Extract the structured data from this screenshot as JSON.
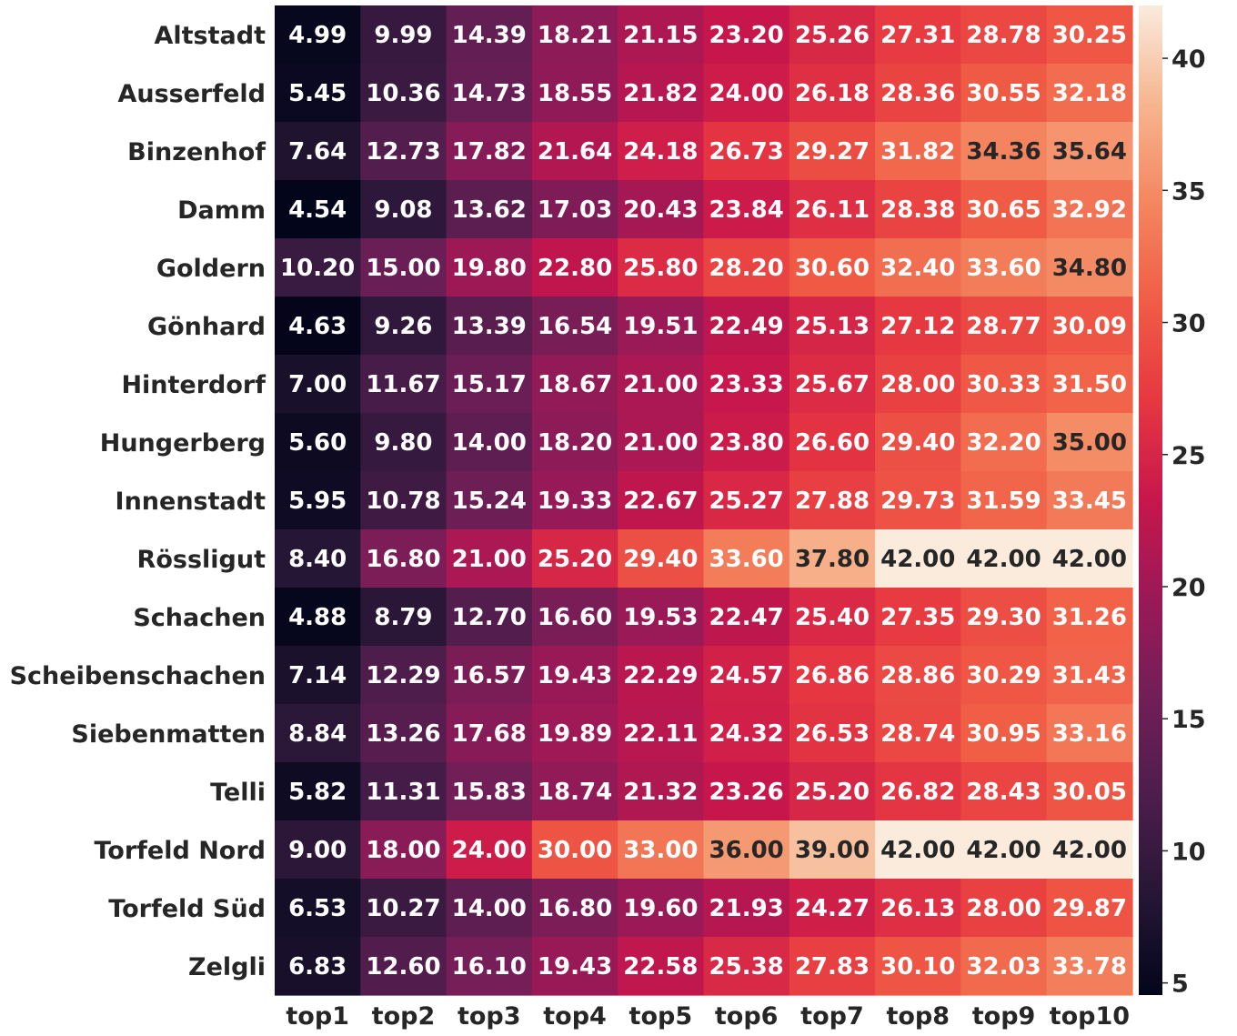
{
  "chart_data": {
    "type": "heatmap",
    "title": "",
    "xlabel": "",
    "ylabel": "",
    "colormap": "rocket",
    "columns": [
      "top1",
      "top2",
      "top3",
      "top4",
      "top5",
      "top6",
      "top7",
      "top8",
      "top9",
      "top10"
    ],
    "rows": [
      "Altstadt",
      "Ausserfeld",
      "Binzenhof",
      "Damm",
      "Goldern",
      "Gönhard",
      "Hinterdorf",
      "Hungerberg",
      "Innenstadt",
      "Rössligut",
      "Schachen",
      "Scheibenschachen",
      "Siebenmatten",
      "Telli",
      "Torfeld Nord",
      "Torfeld Süd",
      "Zelgli"
    ],
    "values": [
      [
        "4.99",
        "9.99",
        "14.39",
        "18.21",
        "21.15",
        "23.20",
        "25.26",
        "27.31",
        "28.78",
        "30.25"
      ],
      [
        "5.45",
        "10.36",
        "14.73",
        "18.55",
        "21.82",
        "24.00",
        "26.18",
        "28.36",
        "30.55",
        "32.18"
      ],
      [
        "7.64",
        "12.73",
        "17.82",
        "21.64",
        "24.18",
        "26.73",
        "29.27",
        "31.82",
        "34.36",
        "35.64"
      ],
      [
        "4.54",
        "9.08",
        "13.62",
        "17.03",
        "20.43",
        "23.84",
        "26.11",
        "28.38",
        "30.65",
        "32.92"
      ],
      [
        "10.20",
        "15.00",
        "19.80",
        "22.80",
        "25.80",
        "28.20",
        "30.60",
        "32.40",
        "33.60",
        "34.80"
      ],
      [
        "4.63",
        "9.26",
        "13.39",
        "16.54",
        "19.51",
        "22.49",
        "25.13",
        "27.12",
        "28.77",
        "30.09"
      ],
      [
        "7.00",
        "11.67",
        "15.17",
        "18.67",
        "21.00",
        "23.33",
        "25.67",
        "28.00",
        "30.33",
        "31.50"
      ],
      [
        "5.60",
        "9.80",
        "14.00",
        "18.20",
        "21.00",
        "23.80",
        "26.60",
        "29.40",
        "32.20",
        "35.00"
      ],
      [
        "5.95",
        "10.78",
        "15.24",
        "19.33",
        "22.67",
        "25.27",
        "27.88",
        "29.73",
        "31.59",
        "33.45"
      ],
      [
        "8.40",
        "16.80",
        "21.00",
        "25.20",
        "29.40",
        "33.60",
        "37.80",
        "42.00",
        "42.00",
        "42.00"
      ],
      [
        "4.88",
        "8.79",
        "12.70",
        "16.60",
        "19.53",
        "22.47",
        "25.40",
        "27.35",
        "29.30",
        "31.26"
      ],
      [
        "7.14",
        "12.29",
        "16.57",
        "19.43",
        "22.29",
        "24.57",
        "26.86",
        "28.86",
        "30.29",
        "31.43"
      ],
      [
        "8.84",
        "13.26",
        "17.68",
        "19.89",
        "22.11",
        "24.32",
        "26.53",
        "28.74",
        "30.95",
        "33.16"
      ],
      [
        "5.82",
        "11.31",
        "15.83",
        "18.74",
        "21.32",
        "23.26",
        "25.20",
        "26.82",
        "28.43",
        "30.05"
      ],
      [
        "9.00",
        "18.00",
        "24.00",
        "30.00",
        "33.00",
        "36.00",
        "39.00",
        "42.00",
        "42.00",
        "42.00"
      ],
      [
        "6.53",
        "10.27",
        "14.00",
        "16.80",
        "19.60",
        "21.93",
        "24.27",
        "26.13",
        "28.00",
        "29.87"
      ],
      [
        "6.83",
        "12.60",
        "16.10",
        "19.43",
        "22.58",
        "25.38",
        "27.83",
        "30.10",
        "32.03",
        "33.78"
      ]
    ],
    "vmin": 4.54,
    "vmax": 42.0,
    "colorbar_ticks": [
      "5",
      "10",
      "15",
      "20",
      "25",
      "30",
      "35",
      "40"
    ],
    "grid": false,
    "legend": "colorbar-right"
  }
}
